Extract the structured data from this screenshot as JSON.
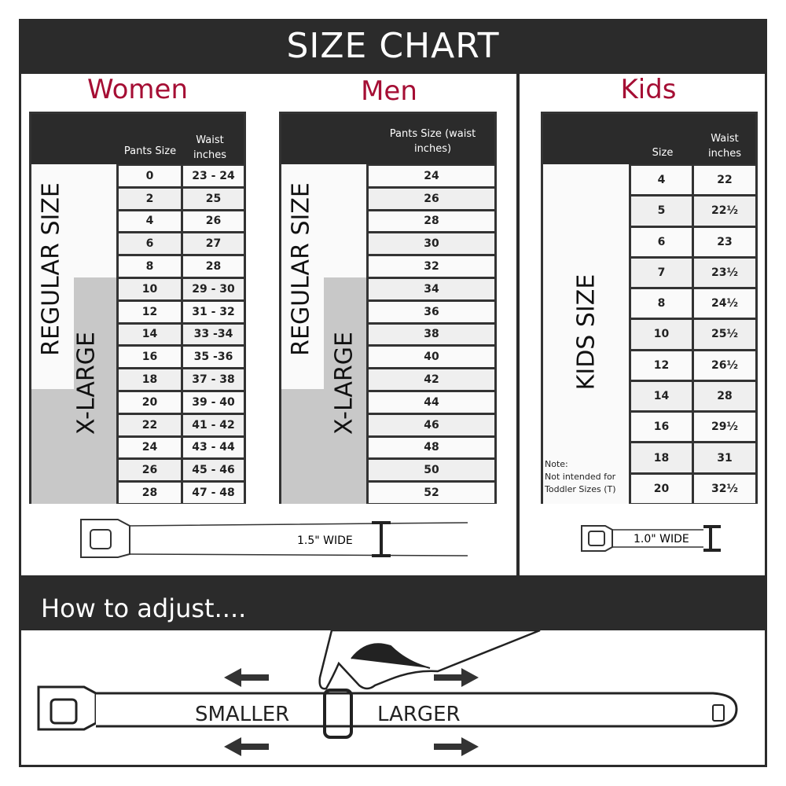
{
  "title": "SIZE CHART",
  "women": {
    "heading": "Women",
    "col1": "Pants Size",
    "col2": "Waist inches",
    "regular_label": "REGULAR SIZE",
    "xlarge_label": "X-LARGE",
    "rows": [
      [
        "0",
        "23 - 24"
      ],
      [
        "2",
        "25"
      ],
      [
        "4",
        "26"
      ],
      [
        "6",
        "27"
      ],
      [
        "8",
        "28"
      ],
      [
        "10",
        "29 - 30"
      ],
      [
        "12",
        "31 - 32"
      ],
      [
        "14",
        "33 -34"
      ],
      [
        "16",
        "35 -36"
      ],
      [
        "18",
        "37 - 38"
      ],
      [
        "20",
        "39 - 40"
      ],
      [
        "22",
        "41 - 42"
      ],
      [
        "24",
        "43 - 44"
      ],
      [
        "26",
        "45 - 46"
      ],
      [
        "28",
        "47 - 48"
      ]
    ],
    "belt_label": "1.5\" WIDE"
  },
  "men": {
    "heading": "Men",
    "col1": "Pants Size (waist inches)",
    "regular_label": "REGULAR SIZE",
    "xlarge_label": "X-LARGE",
    "rows": [
      "24",
      "26",
      "28",
      "30",
      "32",
      "34",
      "36",
      "38",
      "40",
      "42",
      "44",
      "46",
      "48",
      "50",
      "52"
    ]
  },
  "kids": {
    "heading": "Kids",
    "col1": "Size",
    "col2": "Waist inches",
    "side_label": "KIDS SIZE",
    "note": "Note:",
    "note_text": "Not intended for Toddler Sizes (T)",
    "rows": [
      [
        "4",
        "22"
      ],
      [
        "5",
        "22½"
      ],
      [
        "6",
        "23"
      ],
      [
        "7",
        "23½"
      ],
      [
        "8",
        "24½"
      ],
      [
        "10",
        "25½"
      ],
      [
        "12",
        "26½"
      ],
      [
        "14",
        "28"
      ],
      [
        "16",
        "29½"
      ],
      [
        "18",
        "31"
      ],
      [
        "20",
        "32½"
      ]
    ],
    "belt_label": "1.0\" WIDE"
  },
  "adjust": {
    "heading": "How to adjust....",
    "smaller": "SMALLER",
    "larger": "LARGER"
  },
  "colors": {
    "dark": "#2b2b2b",
    "accent": "#a50e34",
    "xlarge_fill": "#c8c8c8",
    "alt_row": "#efefef"
  }
}
